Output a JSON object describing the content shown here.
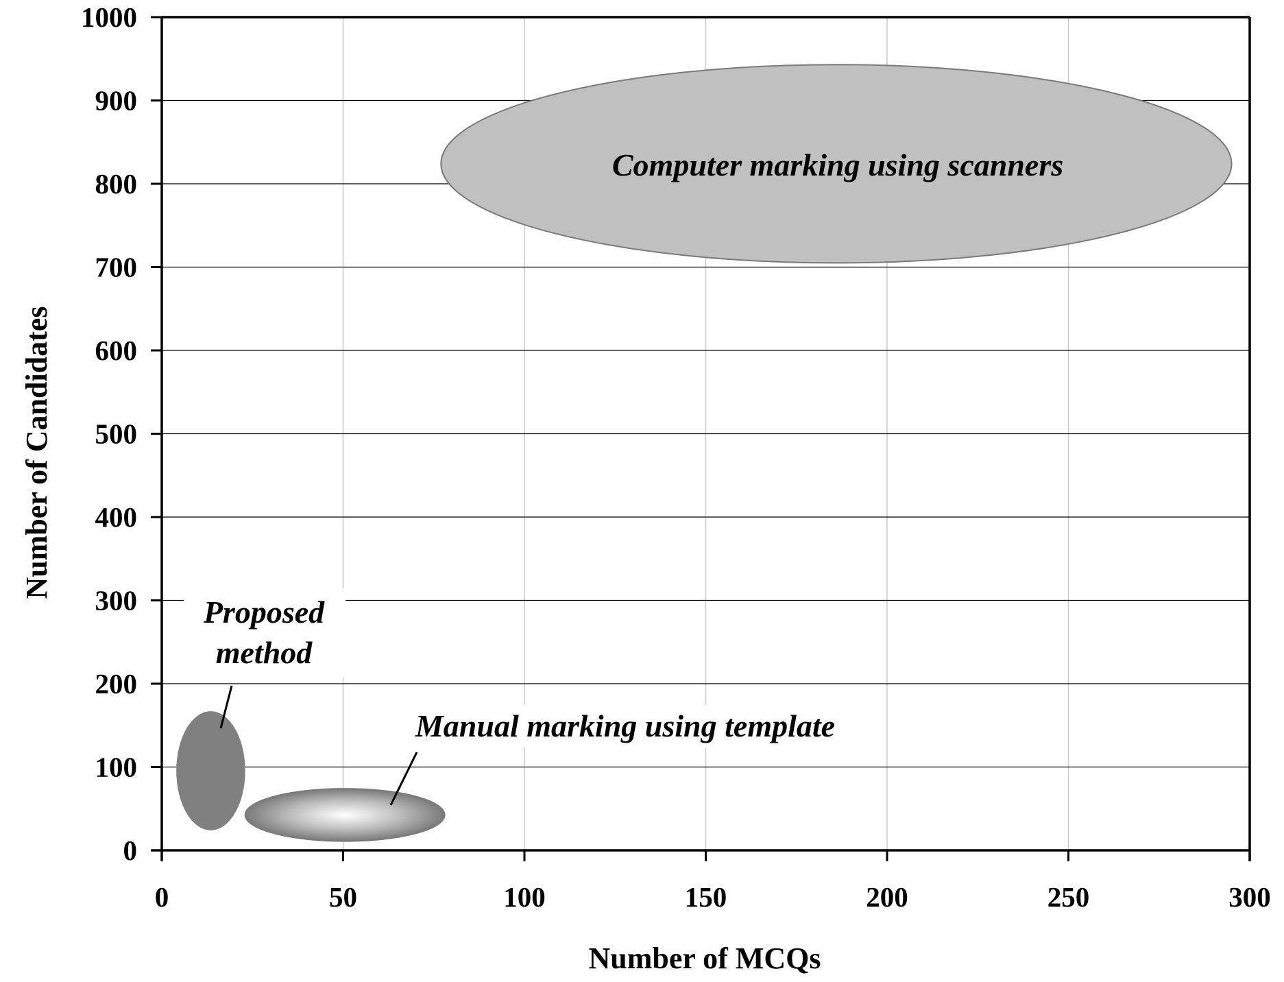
{
  "chart_data": {
    "type": "scatter",
    "title": "",
    "xlabel": "Number of MCQs",
    "ylabel": "Number of Candidates",
    "xlim": [
      0,
      300
    ],
    "ylim": [
      0,
      1000
    ],
    "x_ticks": [
      0,
      50,
      100,
      150,
      200,
      250,
      300
    ],
    "y_ticks": [
      0,
      100,
      200,
      300,
      400,
      500,
      600,
      700,
      800,
      900,
      1000
    ],
    "grid": "on",
    "legend": "none",
    "regions": [
      {
        "label": "Computer marking using scanners",
        "x_range": [
          77,
          295
        ],
        "y_range": [
          705,
          943
        ],
        "fill": "#c0c0c0"
      },
      {
        "label": "Proposed method",
        "label_lines": [
          "Proposed",
          "method"
        ],
        "x_range": [
          4,
          23
        ],
        "y_range": [
          24,
          167
        ],
        "fill": "#808080"
      },
      {
        "label": "Manual marking using template",
        "x_range": [
          23,
          78
        ],
        "y_range": [
          11,
          74
        ],
        "fill": "radial-gray"
      }
    ]
  },
  "colors": {
    "axis": "#000000",
    "gridline_major": "#000000",
    "gridline_minor": "#c8c8c8",
    "region_stroke": "#7a7a7a"
  }
}
